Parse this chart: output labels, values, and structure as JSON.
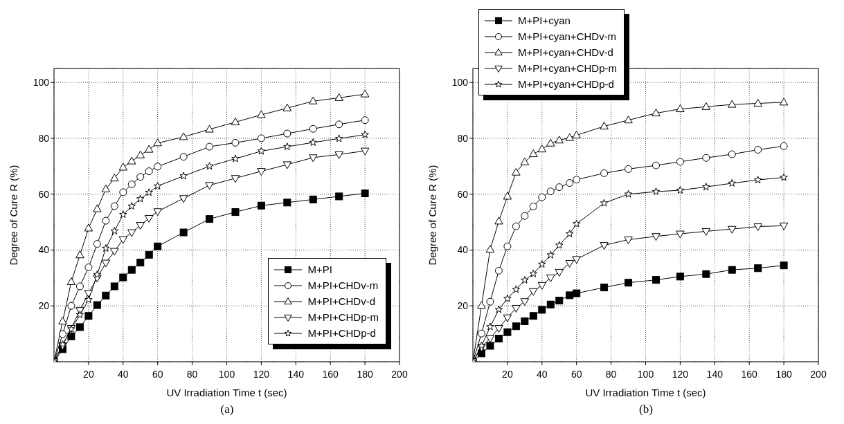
{
  "chart_data": [
    {
      "type": "line",
      "title": "(a)",
      "xlabel": "UV Irradiation Time t (sec)",
      "ylabel": "Degree of Cure R (%)",
      "xlim": [
        0,
        200
      ],
      "ylim": [
        0,
        105
      ],
      "xticks": [
        20,
        40,
        60,
        80,
        100,
        120,
        140,
        160,
        180,
        200
      ],
      "yticks": [
        20,
        40,
        60,
        80,
        100
      ],
      "grid": true,
      "legend": "bottom right",
      "line_style": "solid",
      "x": [
        0,
        5,
        10,
        15,
        20,
        25,
        30,
        35,
        40,
        45,
        50,
        55,
        60,
        75,
        90,
        105,
        120,
        135,
        150,
        165,
        180
      ],
      "series": [
        {
          "name": "M+PI",
          "color": "#000000",
          "marker": "square",
          "values": [
            0,
            4.5,
            9.1,
            12.4,
            16.4,
            20.3,
            23.7,
            27,
            30.2,
            32.9,
            35.5,
            38.3,
            41.3,
            46.3,
            51.1,
            53.6,
            55.9,
            57,
            58.1,
            59.2,
            60.3
          ]
        },
        {
          "name": "M+PI+CHDv-m",
          "color": "#000000",
          "marker": "circle",
          "values": [
            0,
            9.9,
            20,
            27,
            33.8,
            42.2,
            50.5,
            55.7,
            60.7,
            63.5,
            66.2,
            68.2,
            69.9,
            73.4,
            77,
            78.4,
            80,
            81.7,
            83.4,
            85,
            86.5
          ]
        },
        {
          "name": "M+PI+CHDv-d",
          "color": "#000000",
          "marker": "triangle",
          "values": [
            0,
            14.5,
            28.6,
            38.2,
            47.8,
            54.7,
            61.8,
            65.7,
            69.6,
            71.8,
            74,
            76,
            78.3,
            80.5,
            83.2,
            85.8,
            88.4,
            90.8,
            93.3,
            94.5,
            95.8
          ]
        },
        {
          "name": "M+PI+CHDp-m",
          "color": "#000000",
          "marker": "triangle",
          "values": [
            0,
            5.8,
            12,
            18.4,
            24.6,
            30,
            35.4,
            39.6,
            43.8,
            46.3,
            48.9,
            51.4,
            53.8,
            58.5,
            63.2,
            65.7,
            68.2,
            70.6,
            73.1,
            74.2,
            75.5
          ]
        },
        {
          "name": "M+PI+CHDp-d",
          "color": "#000000",
          "marker": "star",
          "values": [
            0,
            6.2,
            11.7,
            16.8,
            22.2,
            31.2,
            40.6,
            46.8,
            52.7,
            55.7,
            58.3,
            60.6,
            62.9,
            66.5,
            70,
            72.7,
            75.4,
            77,
            78.5,
            79.9,
            81.3
          ]
        }
      ]
    },
    {
      "type": "line",
      "title": "(b)",
      "xlabel": "UV Irradiation Time t (sec)",
      "ylabel": "Degree of Cure R (%)",
      "xlim": [
        0,
        200
      ],
      "ylim": [
        0,
        105
      ],
      "xticks": [
        20,
        40,
        60,
        80,
        100,
        120,
        140,
        160,
        180,
        200
      ],
      "yticks": [
        20,
        40,
        60,
        80,
        100
      ],
      "grid": true,
      "legend": "top left",
      "line_style": "solid",
      "x": [
        0,
        5,
        10,
        15,
        20,
        25,
        30,
        35,
        40,
        45,
        50,
        56,
        60,
        76,
        90,
        106,
        120,
        135,
        150,
        165,
        180
      ],
      "series": [
        {
          "name": "M+PI+cyan",
          "color": "#000000",
          "marker": "square",
          "values": [
            0,
            3,
            5.7,
            8.3,
            10.6,
            12.7,
            14.5,
            16.4,
            18.6,
            20.5,
            21.9,
            23.8,
            24.5,
            26.6,
            28.3,
            29.3,
            30.5,
            31.4,
            32.9,
            33.5,
            34.5
          ]
        },
        {
          "name": "M+PI+cyan+CHDv-m",
          "color": "#000000",
          "marker": "circle",
          "values": [
            0,
            10.1,
            21.5,
            32.6,
            41.3,
            48.5,
            52.2,
            55.6,
            58.9,
            61,
            62.5,
            64,
            65.2,
            67.5,
            69,
            70.3,
            71.6,
            73,
            74.3,
            75.9,
            77.2
          ]
        },
        {
          "name": "M+PI+cyan+CHDv-d",
          "color": "#000000",
          "marker": "triangle",
          "values": [
            0,
            20.1,
            40.2,
            50.3,
            59.2,
            67.8,
            71.5,
            74.4,
            76.1,
            78.2,
            79.3,
            80.2,
            81.1,
            84.3,
            86.5,
            89,
            90.5,
            91.3,
            92.1,
            92.5,
            92.9
          ]
        },
        {
          "name": "M+PI+cyan+CHDp-m",
          "color": "#000000",
          "marker": "triangle",
          "values": [
            0,
            5.2,
            8.4,
            12,
            15.8,
            19.2,
            21.6,
            25.2,
            27.4,
            30.1,
            32.1,
            35.3,
            36.7,
            41.7,
            43.7,
            44.9,
            45.8,
            46.7,
            47.5,
            48.4,
            48.7
          ]
        },
        {
          "name": "M+PI+cyan+CHDp-d",
          "color": "#000000",
          "marker": "star",
          "values": [
            0,
            5.7,
            12.5,
            18.7,
            22.6,
            25.9,
            29.2,
            31.5,
            34.9,
            38.2,
            41.7,
            45.8,
            49.4,
            56.8,
            60,
            60.9,
            61.4,
            62.6,
            63.9,
            65.1,
            66
          ]
        }
      ]
    }
  ]
}
